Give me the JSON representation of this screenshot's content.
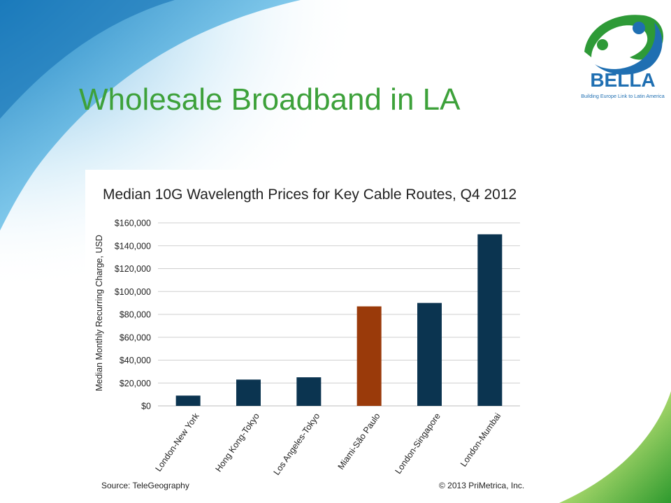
{
  "slide": {
    "title": "Wholesale Broadband in LA"
  },
  "logo": {
    "name": "BELLA",
    "tagline": "Building Europe Link to Latin America"
  },
  "chart_data": {
    "type": "bar",
    "title": "Median 10G Wavelength Prices for Key Cable Routes, Q4 2012",
    "xlabel": "",
    "ylabel": "Median Monthly Recurring Charge, USD",
    "ylim": [
      0,
      160000
    ],
    "yticks": [
      0,
      20000,
      40000,
      60000,
      80000,
      100000,
      120000,
      140000,
      160000
    ],
    "ytick_labels": [
      "$0",
      "$20,000",
      "$40,000",
      "$60,000",
      "$80,000",
      "$100,000",
      "$120,000",
      "$140,000",
      "$160,000"
    ],
    "categories": [
      "London-New York",
      "Hong Kong-Tokyo",
      "Los Angeles-Tokyo",
      "Miami-São Paulo",
      "London-Singapore",
      "London-Mumbai"
    ],
    "values": [
      9000,
      23000,
      25000,
      87000,
      90000,
      150000
    ],
    "highlight_category": "Miami-São Paulo",
    "colors": {
      "bar": "#0b3450",
      "highlight": "#9a3a0a",
      "grid": "#cfcfcf"
    },
    "grid": true
  },
  "footer": {
    "source": "Source: TeleGeography",
    "copyright": "© 2013 PriMetrica, Inc."
  }
}
